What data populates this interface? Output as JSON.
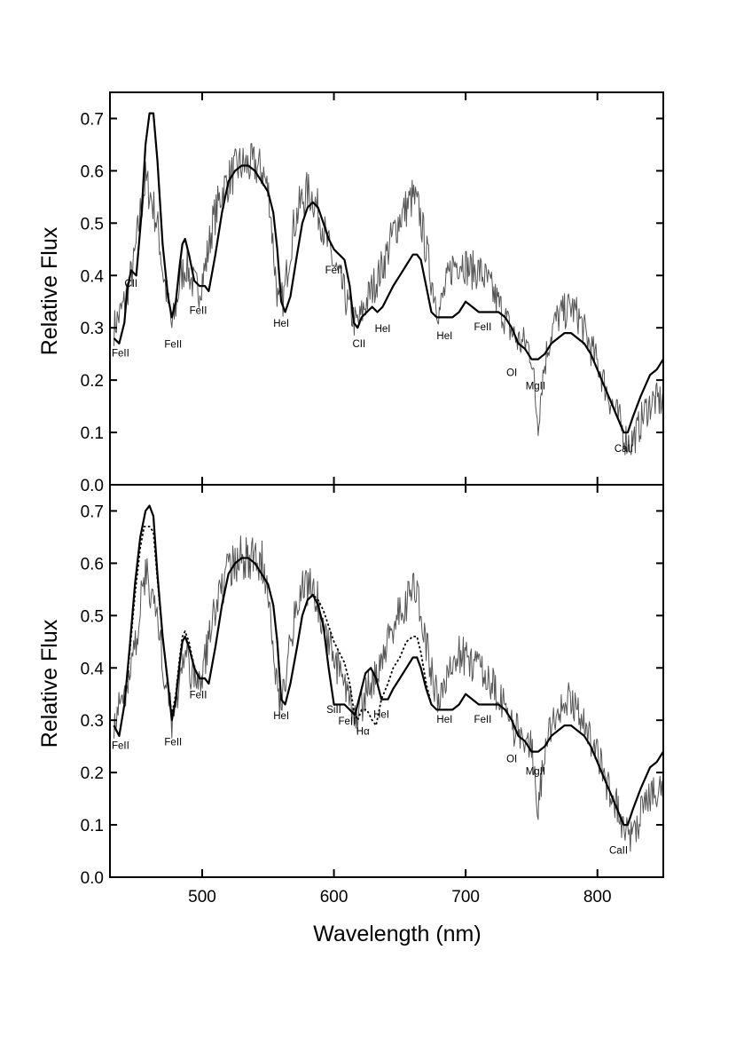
{
  "chart_data": [
    {
      "type": "line",
      "panel": "top",
      "xlabel": "",
      "ylabel": "Relative Flux",
      "xlim": [
        430,
        850
      ],
      "ylim": [
        0.0,
        0.75
      ],
      "yticks": [
        0.0,
        0.1,
        0.2,
        0.3,
        0.4,
        0.5,
        0.6,
        0.7
      ],
      "yticklabels": [
        "0.0",
        "0.1",
        "0.2",
        "0.3",
        "0.4",
        "0.5",
        "0.6",
        "0.7"
      ],
      "xticks": [
        500,
        600,
        700,
        800
      ],
      "xticklabels": [
        "500",
        "600",
        "700",
        "800"
      ],
      "grid": false,
      "series": [
        {
          "style": "thin-noisy",
          "x": [
            433,
            440,
            448,
            453,
            457,
            460,
            464,
            467,
            470,
            474,
            477,
            480,
            484,
            488,
            492,
            497,
            502,
            508,
            515,
            522,
            528,
            534,
            540,
            546,
            551,
            555,
            558,
            562,
            566,
            570,
            575,
            580,
            584,
            590,
            595,
            600,
            606,
            611,
            616,
            619,
            623,
            628,
            634,
            640,
            645,
            650,
            655,
            660,
            665,
            670,
            675,
            680,
            684,
            690,
            697,
            703,
            710,
            716,
            722,
            728,
            733,
            738,
            742,
            746,
            750,
            753,
            755,
            758,
            762,
            766,
            770,
            775,
            780,
            786,
            792,
            797,
            802,
            807,
            812,
            817,
            821,
            825,
            830,
            836,
            842,
            850
          ],
          "y": [
            0.3,
            0.34,
            0.42,
            0.52,
            0.58,
            0.56,
            0.52,
            0.48,
            0.41,
            0.35,
            0.3,
            0.34,
            0.4,
            0.42,
            0.39,
            0.37,
            0.41,
            0.5,
            0.56,
            0.59,
            0.61,
            0.61,
            0.61,
            0.6,
            0.55,
            0.42,
            0.34,
            0.36,
            0.44,
            0.5,
            0.54,
            0.56,
            0.55,
            0.51,
            0.46,
            0.42,
            0.38,
            0.34,
            0.31,
            0.31,
            0.34,
            0.37,
            0.4,
            0.44,
            0.48,
            0.51,
            0.53,
            0.55,
            0.52,
            0.45,
            0.38,
            0.33,
            0.37,
            0.42,
            0.43,
            0.41,
            0.41,
            0.39,
            0.36,
            0.33,
            0.3,
            0.28,
            0.27,
            0.27,
            0.25,
            0.16,
            0.12,
            0.2,
            0.26,
            0.3,
            0.32,
            0.33,
            0.34,
            0.32,
            0.28,
            0.25,
            0.22,
            0.18,
            0.15,
            0.12,
            0.09,
            0.08,
            0.1,
            0.14,
            0.16,
            0.16
          ]
        },
        {
          "style": "solid",
          "x": [
            433,
            437,
            441,
            443,
            446,
            450,
            454,
            457,
            460,
            463,
            466,
            470,
            474,
            477,
            480,
            483,
            485,
            487,
            490,
            494,
            498,
            502,
            505,
            510,
            515,
            520,
            525,
            530,
            535,
            540,
            545,
            550,
            554,
            557,
            560,
            563,
            567,
            572,
            576,
            580,
            584,
            588,
            592,
            596,
            600,
            604,
            608,
            612,
            615,
            618,
            621,
            625,
            629,
            633,
            637,
            641,
            645,
            650,
            655,
            660,
            663,
            666,
            670,
            674,
            678,
            682,
            686,
            690,
            695,
            700,
            705,
            710,
            715,
            720,
            725,
            730,
            735,
            740,
            745,
            750,
            755,
            760,
            765,
            770,
            775,
            780,
            785,
            790,
            795,
            800,
            805,
            810,
            815,
            820,
            823,
            827,
            833,
            840,
            845,
            850
          ],
          "y": [
            0.28,
            0.27,
            0.31,
            0.37,
            0.41,
            0.4,
            0.52,
            0.65,
            0.71,
            0.71,
            0.62,
            0.46,
            0.36,
            0.32,
            0.35,
            0.42,
            0.46,
            0.47,
            0.44,
            0.39,
            0.38,
            0.38,
            0.37,
            0.44,
            0.52,
            0.58,
            0.6,
            0.61,
            0.61,
            0.6,
            0.58,
            0.56,
            0.52,
            0.45,
            0.35,
            0.33,
            0.36,
            0.44,
            0.5,
            0.53,
            0.54,
            0.53,
            0.5,
            0.47,
            0.45,
            0.44,
            0.43,
            0.38,
            0.31,
            0.3,
            0.32,
            0.33,
            0.34,
            0.33,
            0.34,
            0.36,
            0.38,
            0.4,
            0.42,
            0.44,
            0.44,
            0.43,
            0.38,
            0.33,
            0.32,
            0.32,
            0.32,
            0.32,
            0.33,
            0.35,
            0.34,
            0.33,
            0.33,
            0.33,
            0.33,
            0.32,
            0.3,
            0.27,
            0.26,
            0.24,
            0.24,
            0.25,
            0.27,
            0.28,
            0.29,
            0.29,
            0.28,
            0.27,
            0.25,
            0.22,
            0.19,
            0.16,
            0.13,
            0.1,
            0.1,
            0.13,
            0.17,
            0.21,
            0.22,
            0.24
          ]
        }
      ],
      "annotations": [
        {
          "text": "FeII",
          "x": 438,
          "y": 0.245
        },
        {
          "text": "CII",
          "x": 446,
          "y": 0.378
        },
        {
          "text": "FeII",
          "x": 478,
          "y": 0.262
        },
        {
          "text": "FeII",
          "x": 497,
          "y": 0.327
        },
        {
          "text": "HeI",
          "x": 560,
          "y": 0.302
        },
        {
          "text": "FeII",
          "x": 600,
          "y": 0.404
        },
        {
          "text": "CII",
          "x": 619,
          "y": 0.263
        },
        {
          "text": "HeI",
          "x": 637,
          "y": 0.292
        },
        {
          "text": "HeI",
          "x": 684,
          "y": 0.278
        },
        {
          "text": "FeII",
          "x": 713,
          "y": 0.295
        },
        {
          "text": "OI",
          "x": 735,
          "y": 0.208
        },
        {
          "text": "MgII",
          "x": 753,
          "y": 0.182
        },
        {
          "text": "CaII",
          "x": 820,
          "y": 0.063
        }
      ]
    },
    {
      "type": "line",
      "panel": "bottom",
      "xlabel": "Wavelength (nm)",
      "ylabel": "Relative Flux",
      "xlim": [
        430,
        850
      ],
      "ylim": [
        0.0,
        0.75
      ],
      "yticks": [
        0.0,
        0.1,
        0.2,
        0.3,
        0.4,
        0.5,
        0.6,
        0.7
      ],
      "yticklabels": [
        "0.0",
        "0.1",
        "0.2",
        "0.3",
        "0.4",
        "0.5",
        "0.6",
        "0.7"
      ],
      "xticks": [
        500,
        600,
        700,
        800
      ],
      "xticklabels": [
        "500",
        "600",
        "700",
        "800"
      ],
      "grid": false,
      "series": [
        {
          "style": "thin-noisy",
          "x": [
            433,
            440,
            448,
            453,
            457,
            460,
            464,
            467,
            470,
            474,
            477,
            480,
            484,
            488,
            492,
            497,
            502,
            508,
            515,
            522,
            528,
            534,
            540,
            546,
            551,
            555,
            558,
            562,
            566,
            570,
            575,
            580,
            584,
            590,
            595,
            600,
            606,
            611,
            616,
            619,
            623,
            628,
            634,
            640,
            645,
            650,
            655,
            660,
            665,
            670,
            675,
            680,
            684,
            690,
            697,
            703,
            710,
            716,
            722,
            728,
            733,
            738,
            742,
            746,
            750,
            753,
            755,
            758,
            762,
            766,
            770,
            775,
            780,
            786,
            792,
            797,
            802,
            807,
            812,
            817,
            821,
            825,
            830,
            836,
            842,
            850
          ],
          "y": [
            0.3,
            0.34,
            0.42,
            0.52,
            0.58,
            0.56,
            0.52,
            0.48,
            0.41,
            0.35,
            0.3,
            0.34,
            0.4,
            0.42,
            0.39,
            0.37,
            0.41,
            0.5,
            0.56,
            0.59,
            0.61,
            0.61,
            0.61,
            0.6,
            0.55,
            0.42,
            0.34,
            0.36,
            0.44,
            0.5,
            0.54,
            0.56,
            0.55,
            0.51,
            0.46,
            0.42,
            0.38,
            0.34,
            0.31,
            0.31,
            0.34,
            0.37,
            0.4,
            0.44,
            0.48,
            0.51,
            0.53,
            0.55,
            0.52,
            0.45,
            0.38,
            0.33,
            0.37,
            0.42,
            0.43,
            0.41,
            0.41,
            0.39,
            0.36,
            0.33,
            0.3,
            0.28,
            0.27,
            0.27,
            0.25,
            0.16,
            0.12,
            0.2,
            0.26,
            0.3,
            0.32,
            0.33,
            0.34,
            0.32,
            0.28,
            0.25,
            0.22,
            0.18,
            0.15,
            0.12,
            0.09,
            0.08,
            0.1,
            0.14,
            0.16,
            0.16
          ]
        },
        {
          "style": "solid",
          "x": [
            433,
            437,
            441,
            445,
            449,
            453,
            457,
            460,
            463,
            466,
            470,
            474,
            477,
            480,
            483,
            485,
            487,
            490,
            494,
            498,
            502,
            505,
            510,
            515,
            520,
            525,
            530,
            535,
            540,
            545,
            550,
            554,
            557,
            560,
            563,
            567,
            572,
            576,
            580,
            584,
            588,
            592,
            596,
            600,
            604,
            608,
            612,
            616,
            620,
            624,
            628,
            632,
            636,
            641,
            645,
            650,
            655,
            660,
            663,
            666,
            670,
            674,
            678,
            682,
            686,
            690,
            695,
            700,
            705,
            710,
            715,
            720,
            725,
            730,
            735,
            740,
            745,
            750,
            755,
            760,
            765,
            770,
            775,
            780,
            785,
            790,
            795,
            800,
            805,
            810,
            815,
            820,
            823,
            827,
            833,
            840,
            845,
            850
          ],
          "y": [
            0.29,
            0.27,
            0.33,
            0.44,
            0.56,
            0.65,
            0.7,
            0.71,
            0.69,
            0.58,
            0.46,
            0.37,
            0.3,
            0.34,
            0.41,
            0.45,
            0.46,
            0.44,
            0.4,
            0.38,
            0.38,
            0.37,
            0.44,
            0.52,
            0.58,
            0.6,
            0.61,
            0.61,
            0.6,
            0.58,
            0.56,
            0.52,
            0.45,
            0.34,
            0.33,
            0.37,
            0.44,
            0.5,
            0.53,
            0.54,
            0.52,
            0.48,
            0.4,
            0.33,
            0.33,
            0.33,
            0.32,
            0.31,
            0.35,
            0.39,
            0.4,
            0.38,
            0.34,
            0.34,
            0.36,
            0.38,
            0.4,
            0.42,
            0.42,
            0.4,
            0.36,
            0.33,
            0.32,
            0.32,
            0.32,
            0.32,
            0.33,
            0.35,
            0.34,
            0.33,
            0.33,
            0.33,
            0.33,
            0.32,
            0.3,
            0.27,
            0.26,
            0.24,
            0.24,
            0.25,
            0.27,
            0.28,
            0.29,
            0.29,
            0.28,
            0.27,
            0.25,
            0.22,
            0.19,
            0.16,
            0.13,
            0.1,
            0.1,
            0.13,
            0.17,
            0.21,
            0.22,
            0.24
          ]
        },
        {
          "style": "dotted",
          "x": [
            433,
            437,
            441,
            445,
            449,
            453,
            456,
            460,
            463,
            466,
            470,
            474,
            477,
            480,
            483,
            485,
            487,
            490,
            494,
            498,
            502,
            505,
            510,
            515,
            520,
            525,
            530,
            535,
            540,
            545,
            550,
            554,
            557,
            560,
            563,
            567,
            572,
            576,
            580,
            584,
            588,
            592,
            596,
            600,
            604,
            608,
            612,
            615,
            618,
            621,
            625,
            629,
            632,
            636,
            641,
            645,
            650,
            655,
            660,
            663,
            666,
            670,
            674,
            678,
            682,
            686,
            690
          ],
          "y": [
            0.29,
            0.27,
            0.33,
            0.43,
            0.54,
            0.63,
            0.67,
            0.67,
            0.66,
            0.57,
            0.46,
            0.37,
            0.31,
            0.35,
            0.42,
            0.46,
            0.47,
            0.45,
            0.4,
            0.38,
            0.38,
            0.37,
            0.44,
            0.52,
            0.58,
            0.6,
            0.61,
            0.61,
            0.6,
            0.58,
            0.56,
            0.52,
            0.45,
            0.34,
            0.33,
            0.37,
            0.44,
            0.5,
            0.53,
            0.54,
            0.53,
            0.51,
            0.48,
            0.45,
            0.43,
            0.41,
            0.37,
            0.32,
            0.3,
            0.32,
            0.32,
            0.3,
            0.29,
            0.34,
            0.37,
            0.4,
            0.42,
            0.45,
            0.46,
            0.46,
            0.43,
            0.37,
            0.33,
            0.32,
            0.32,
            0.32,
            0.32
          ]
        }
      ],
      "annotations": [
        {
          "text": "FeII",
          "x": 438,
          "y": 0.245
        },
        {
          "text": "FeII",
          "x": 478,
          "y": 0.252
        },
        {
          "text": "FeII",
          "x": 497,
          "y": 0.342
        },
        {
          "text": "HeI",
          "x": 560,
          "y": 0.302
        },
        {
          "text": "SiII",
          "x": 600,
          "y": 0.314
        },
        {
          "text": "FeII",
          "x": 610,
          "y": 0.292
        },
        {
          "text": "Hα",
          "x": 622,
          "y": 0.272
        },
        {
          "text": "HeI",
          "x": 636,
          "y": 0.305
        },
        {
          "text": "HeI",
          "x": 684,
          "y": 0.295
        },
        {
          "text": "FeII",
          "x": 713,
          "y": 0.295
        },
        {
          "text": "OI",
          "x": 735,
          "y": 0.22
        },
        {
          "text": "MgII",
          "x": 753,
          "y": 0.196
        },
        {
          "text": "CaII",
          "x": 816,
          "y": 0.045
        }
      ]
    }
  ]
}
